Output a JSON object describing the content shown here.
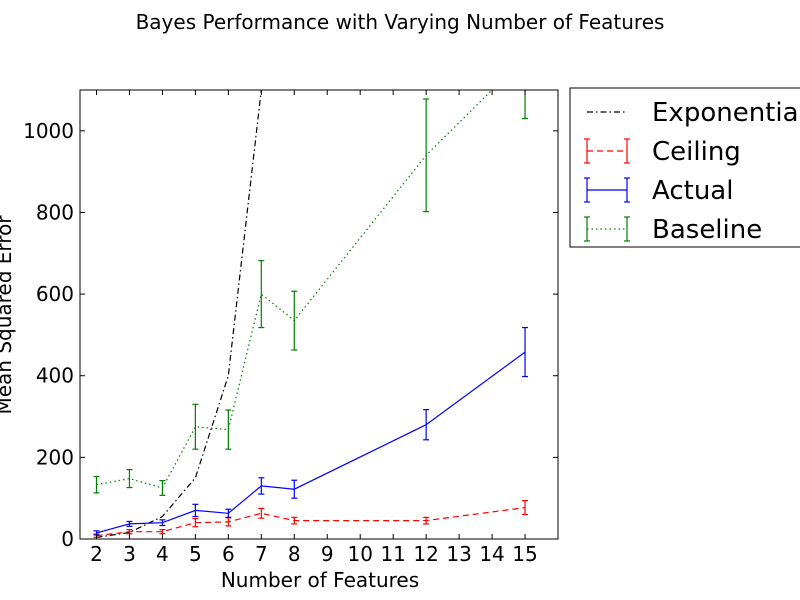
{
  "chart_data": {
    "type": "line",
    "title": "Bayes Performance with Varying Number of Features",
    "xlabel": "Number of Features",
    "ylabel": "Mean Squared Error",
    "xlim": [
      1.5,
      16
    ],
    "ylim": [
      0,
      1100
    ],
    "xticks": [
      2,
      3,
      4,
      5,
      6,
      7,
      8,
      9,
      10,
      11,
      12,
      13,
      14,
      15
    ],
    "yticks": [
      0,
      200,
      400,
      600,
      800,
      1000
    ],
    "grid": false,
    "legend_position": "outside-right",
    "series": [
      {
        "name": "Exponential",
        "color": "#000000",
        "style": "dashdot",
        "x": [
          2,
          3,
          4,
          5,
          6,
          7
        ],
        "y": [
          4,
          16,
          55,
          150,
          400,
          1100
        ],
        "err": null
      },
      {
        "name": "Ceiling",
        "color": "#ff0000",
        "style": "dashed",
        "x": [
          2,
          3,
          4,
          5,
          6,
          7,
          8,
          12,
          15
        ],
        "y": [
          8,
          18,
          18,
          40,
          42,
          63,
          45,
          45,
          77
        ],
        "err": [
          4,
          5,
          5,
          10,
          10,
          12,
          8,
          8,
          17
        ]
      },
      {
        "name": "Actual",
        "color": "#0000ff",
        "style": "solid",
        "x": [
          2,
          3,
          4,
          5,
          6,
          7,
          8,
          12,
          15
        ],
        "y": [
          15,
          37,
          40,
          70,
          63,
          130,
          122,
          280,
          458
        ],
        "err": [
          5,
          6,
          7,
          15,
          10,
          20,
          22,
          37,
          60
        ]
      },
      {
        "name": "Baseline",
        "color": "#008000",
        "style": "dotted",
        "x": [
          2,
          3,
          4,
          5,
          6,
          7,
          8,
          12,
          15
        ],
        "y": [
          133,
          148,
          125,
          275,
          268,
          600,
          535,
          940,
          1180
        ],
        "err": [
          20,
          22,
          18,
          55,
          48,
          82,
          72,
          138,
          150
        ]
      }
    ]
  }
}
